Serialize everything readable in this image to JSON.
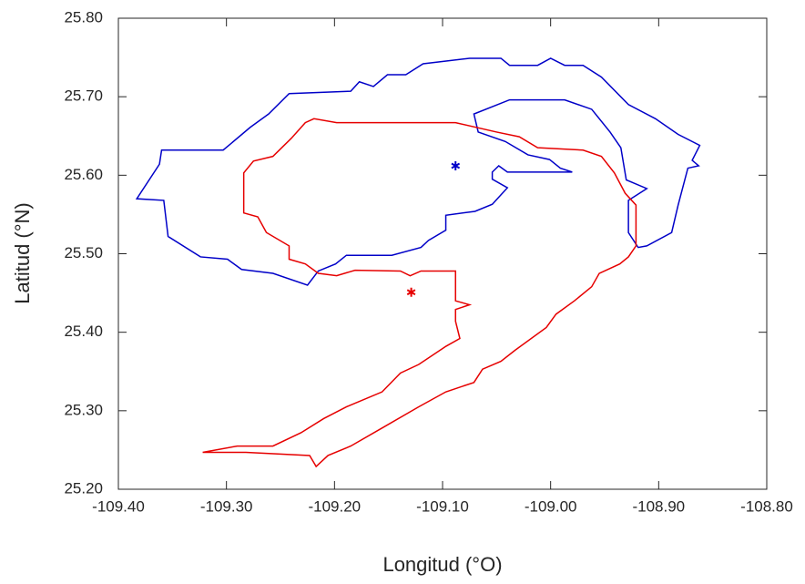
{
  "chart_data": {
    "type": "line",
    "xlabel": "Longitud (°O)",
    "ylabel": "Latitud (°N)",
    "xlim": [
      -109.4,
      -108.8
    ],
    "ylim": [
      25.2,
      25.8
    ],
    "xticks": [
      {
        "value": -109.4,
        "label": "-109.40"
      },
      {
        "value": -109.3,
        "label": "-109.30"
      },
      {
        "value": -109.2,
        "label": "-109.20"
      },
      {
        "value": -109.1,
        "label": "-109.10"
      },
      {
        "value": -109.0,
        "label": "-109.00"
      },
      {
        "value": -108.9,
        "label": "-108.90"
      },
      {
        "value": -108.8,
        "label": "-108.80"
      }
    ],
    "yticks": [
      {
        "value": 25.2,
        "label": "25.20"
      },
      {
        "value": 25.3,
        "label": "25.30"
      },
      {
        "value": 25.4,
        "label": "25.40"
      },
      {
        "value": 25.5,
        "label": "25.50"
      },
      {
        "value": 25.6,
        "label": "25.60"
      },
      {
        "value": 25.7,
        "label": "25.70"
      },
      {
        "value": 25.8,
        "label": "25.80"
      }
    ],
    "series": [
      {
        "color": "#0000c8",
        "style": "line",
        "x": [
          -108.98,
          -109.04,
          -109.048,
          -109.054,
          -109.054,
          -109.04,
          -109.054,
          -109.07,
          -109.097,
          -109.097,
          -109.113,
          -109.12,
          -109.147,
          -109.189,
          -109.199,
          -109.215,
          -109.225,
          -109.257,
          -109.286,
          -109.299,
          -109.324,
          -109.354,
          -109.358,
          -109.383,
          -109.362,
          -109.36,
          -109.303,
          -109.278,
          -109.261,
          -109.242,
          -109.185,
          -109.177,
          -109.164,
          -109.151,
          -109.134,
          -109.118,
          -109.075,
          -109.046,
          -109.038,
          -109.012,
          -109.0,
          -108.987,
          -108.97,
          -108.953,
          -108.928,
          -108.903,
          -108.882,
          -108.862,
          -108.869,
          -108.863,
          -108.873,
          -108.882,
          -108.888,
          -108.911,
          -108.919,
          -108.928,
          -108.928,
          -108.911,
          -108.93,
          -108.935,
          -108.945,
          -108.962,
          -108.987,
          -109.038,
          -109.071,
          -109.067,
          -109.042,
          -109.021,
          -109.001,
          -108.991,
          -108.98
        ],
        "values": [
          25.604,
          25.604,
          25.612,
          25.604,
          25.595,
          25.584,
          25.563,
          25.554,
          25.549,
          25.53,
          25.517,
          25.508,
          25.498,
          25.498,
          25.487,
          25.478,
          25.46,
          25.475,
          25.48,
          25.493,
          25.496,
          25.522,
          25.568,
          25.57,
          25.614,
          25.632,
          25.632,
          25.661,
          25.678,
          25.704,
          25.707,
          25.719,
          25.713,
          25.728,
          25.728,
          25.742,
          25.749,
          25.749,
          25.74,
          25.74,
          25.749,
          25.74,
          25.74,
          25.725,
          25.69,
          25.672,
          25.652,
          25.638,
          25.619,
          25.612,
          25.609,
          25.562,
          25.527,
          25.51,
          25.508,
          25.527,
          25.568,
          25.583,
          25.594,
          25.635,
          25.655,
          25.684,
          25.696,
          25.696,
          25.678,
          25.655,
          25.643,
          25.626,
          25.62,
          25.609,
          25.604
        ]
      },
      {
        "color": "#e60000",
        "style": "line",
        "x": [
          -109.322,
          -109.29,
          -109.257,
          -109.231,
          -109.21,
          -109.189,
          -109.156,
          -109.139,
          -109.122,
          -109.097,
          -109.084,
          -109.088,
          -109.088,
          -109.075,
          -109.088,
          -109.088,
          -109.12,
          -109.13,
          -109.139,
          -109.181,
          -109.198,
          -109.215,
          -109.227,
          -109.242,
          -109.242,
          -109.263,
          -109.271,
          -109.284,
          -109.284,
          -109.275,
          -109.257,
          -109.24,
          -109.227,
          -109.219,
          -109.198,
          -109.088,
          -109.05,
          -109.029,
          -109.012,
          -108.97,
          -108.953,
          -108.941,
          -108.931,
          -108.921,
          -108.921,
          -108.928,
          -108.936,
          -108.955,
          -108.962,
          -108.978,
          -108.995,
          -109.004,
          -109.033,
          -109.046,
          -109.063,
          -109.071,
          -109.097,
          -109.122,
          -109.156,
          -109.185,
          -109.206,
          -109.217,
          -109.223,
          -109.282,
          -109.322
        ],
        "values": [
          25.247,
          25.255,
          25.255,
          25.272,
          25.29,
          25.305,
          25.324,
          25.348,
          25.359,
          25.382,
          25.392,
          25.414,
          25.429,
          25.435,
          25.44,
          25.478,
          25.478,
          25.472,
          25.478,
          25.479,
          25.472,
          25.475,
          25.487,
          25.493,
          25.51,
          25.527,
          25.547,
          25.552,
          25.603,
          25.618,
          25.624,
          25.647,
          25.667,
          25.672,
          25.667,
          25.667,
          25.655,
          25.649,
          25.635,
          25.632,
          25.624,
          25.603,
          25.577,
          25.562,
          25.51,
          25.496,
          25.487,
          25.475,
          25.458,
          25.44,
          25.423,
          25.406,
          25.377,
          25.363,
          25.353,
          25.336,
          25.324,
          25.305,
          25.278,
          25.255,
          25.243,
          25.229,
          25.243,
          25.247,
          25.247
        ]
      },
      {
        "color": "#0000c8",
        "style": "star",
        "x": [
          -109.088
        ],
        "values": [
          25.612
        ]
      },
      {
        "color": "#e60000",
        "style": "star",
        "x": [
          -109.129
        ],
        "values": [
          25.451
        ]
      }
    ]
  }
}
